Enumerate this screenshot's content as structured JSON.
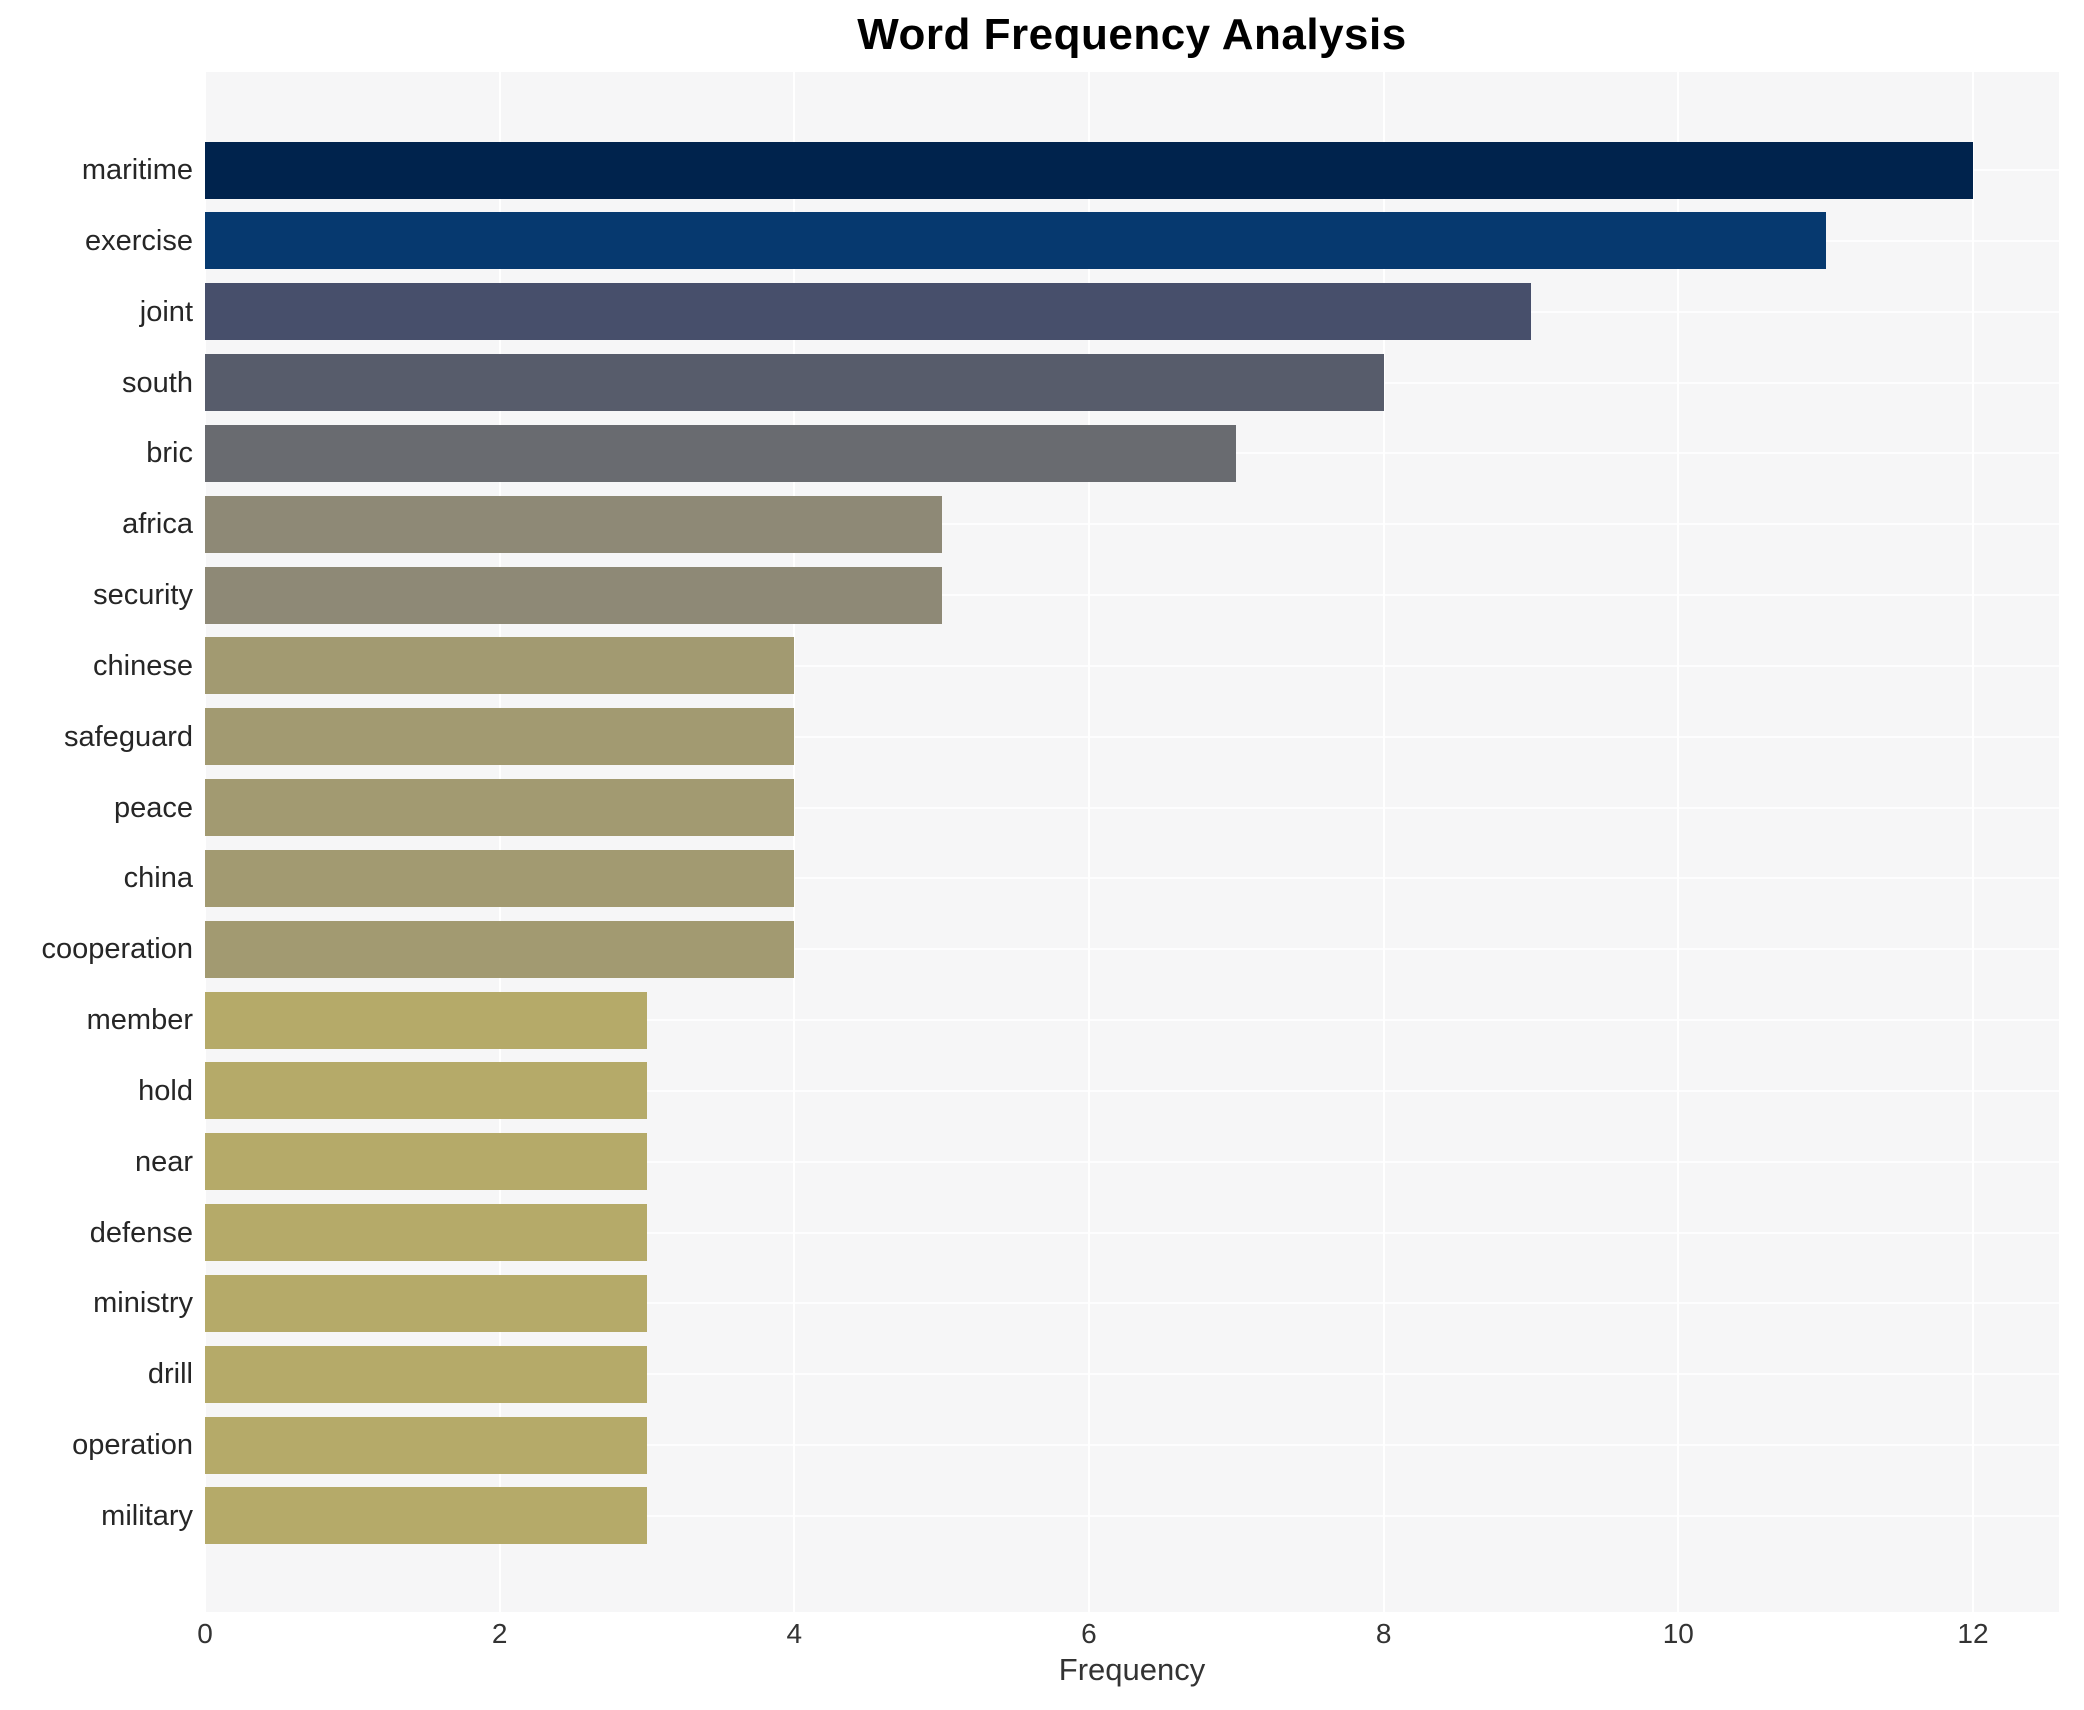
{
  "chart_data": {
    "type": "bar",
    "orientation": "horizontal",
    "title": "Word Frequency Analysis",
    "xlabel": "Frequency",
    "ylabel": "",
    "categories": [
      "maritime",
      "exercise",
      "joint",
      "south",
      "bric",
      "africa",
      "security",
      "chinese",
      "safeguard",
      "peace",
      "china",
      "cooperation",
      "member",
      "hold",
      "near",
      "defense",
      "ministry",
      "drill",
      "operation",
      "military"
    ],
    "values": [
      12,
      11,
      9,
      8,
      7,
      5,
      5,
      4,
      4,
      4,
      4,
      4,
      3,
      3,
      3,
      3,
      3,
      3,
      3,
      3
    ],
    "bar_colors": [
      "#00234d",
      "#06396f",
      "#474f6b",
      "#575c6b",
      "#696b70",
      "#8e8976",
      "#8e8976",
      "#a29a71",
      "#a29a71",
      "#a29a71",
      "#a29a71",
      "#a29a71",
      "#b5aa69",
      "#b5aa69",
      "#b5aa69",
      "#b5aa69",
      "#b5aa69",
      "#b5aa69",
      "#b5aa69",
      "#b5aa69"
    ],
    "xticks": [
      0,
      2,
      4,
      6,
      8,
      10,
      12
    ],
    "xlim": [
      0,
      12.58
    ],
    "grid": true,
    "legend": "none",
    "plot_background": "#f6f6f7",
    "grid_color": "#ffffff",
    "label_color": "#262626",
    "tick_color": "#333333",
    "title_color": "#000000"
  }
}
